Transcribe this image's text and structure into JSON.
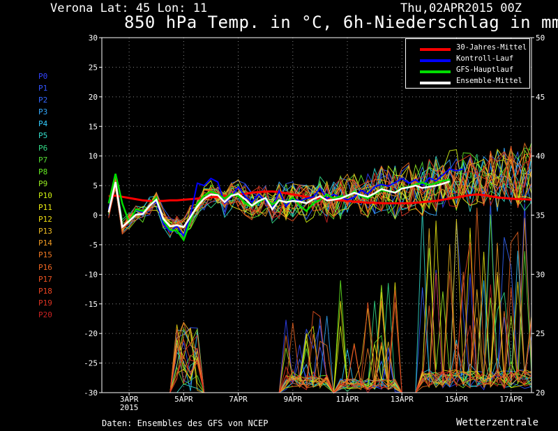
{
  "header": {
    "location": "Verona   Lat: 45 Lon: 11",
    "date": "Thu,02APR2015 00Z",
    "title": "850 hPa Temp. in °C, 6h-Niederschlag in mm"
  },
  "footer": {
    "source": "Daten: Ensembles des GFS von NCEP",
    "brand": "Wetterzentrale"
  },
  "members": [
    {
      "label": "P0",
      "color": "#3344ff"
    },
    {
      "label": "P1",
      "color": "#3355ff"
    },
    {
      "label": "P2",
      "color": "#3366ff"
    },
    {
      "label": "P3",
      "color": "#33aaff"
    },
    {
      "label": "P4",
      "color": "#33ccff"
    },
    {
      "label": "P5",
      "color": "#33ddcc"
    },
    {
      "label": "P6",
      "color": "#33dd88"
    },
    {
      "label": "P7",
      "color": "#55dd33"
    },
    {
      "label": "P8",
      "color": "#66ee22"
    },
    {
      "label": "P9",
      "color": "#99ee22"
    },
    {
      "label": "P10",
      "color": "#ccee11"
    },
    {
      "label": "P11",
      "color": "#eeee11"
    },
    {
      "label": "P12",
      "color": "#eedd11"
    },
    {
      "label": "P13",
      "color": "#eebb22"
    },
    {
      "label": "P14",
      "color": "#ee9922"
    },
    {
      "label": "P15",
      "color": "#ee7722"
    },
    {
      "label": "P16",
      "color": "#ee6622"
    },
    {
      "label": "P17",
      "color": "#ee5522"
    },
    {
      "label": "P18",
      "color": "#ee4422"
    },
    {
      "label": "P19",
      "color": "#dd3322"
    },
    {
      "label": "P20",
      "color": "#cc2222"
    }
  ],
  "chart_data": {
    "type": "line",
    "title": "850 hPa Temp. in °C, 6h-Niederschlag in mm",
    "x_ticks": [
      {
        "day": 3,
        "label": "3APR",
        "sublabel": "2015"
      },
      {
        "day": 5,
        "label": "5APR"
      },
      {
        "day": 7,
        "label": "7APR"
      },
      {
        "day": 9,
        "label": "9APR"
      },
      {
        "day": 11,
        "label": "11APR"
      },
      {
        "day": 13,
        "label": "13APR"
      },
      {
        "day": 15,
        "label": "15APR"
      },
      {
        "day": 17,
        "label": "17APR"
      }
    ],
    "x_range": [
      2.0,
      17.75
    ],
    "y_left": {
      "range": [
        -30,
        30
      ],
      "ticks": [
        -30,
        -25,
        -20,
        -15,
        -10,
        -5,
        0,
        5,
        10,
        15,
        20,
        25,
        30
      ],
      "unit": "°C"
    },
    "y_right": {
      "range": [
        20,
        50
      ],
      "ticks": [
        20,
        25,
        30,
        35,
        40,
        45,
        50
      ],
      "unit": "mm"
    },
    "grid": true,
    "legend": {
      "position": "top-right",
      "entries": [
        {
          "name": "30-Jahres-Mittel",
          "color": "#ff0000"
        },
        {
          "name": "Kontroll-Lauf",
          "color": "#0000ff"
        },
        {
          "name": "GFS-Hauptlauf",
          "color": "#00dd00"
        },
        {
          "name": "Ensemble-Mittel",
          "color": "#ffffff"
        }
      ]
    },
    "x_days": [
      2.25,
      2.5,
      2.75,
      3.0,
      3.25,
      3.5,
      3.75,
      4.0,
      4.25,
      4.5,
      4.75,
      5.0,
      5.25,
      5.5,
      5.75,
      6.0,
      6.25,
      6.5,
      6.75,
      7.0,
      7.25,
      7.5,
      7.75,
      8.0,
      8.25,
      8.5,
      8.75,
      9.0,
      9.25,
      9.5,
      9.75,
      10.0,
      10.25,
      10.5,
      10.75,
      11.0,
      11.25,
      11.5,
      11.75,
      12.0,
      12.25,
      12.5,
      12.75,
      13.0,
      13.25,
      13.5,
      13.75,
      14.0,
      14.25,
      14.5,
      14.75,
      15.0,
      15.25,
      15.5,
      15.75,
      16.0,
      16.25,
      16.5,
      16.75,
      17.0,
      17.25,
      17.5,
      17.75
    ],
    "climate_mean": [
      3.2,
      3.3,
      3.1,
      2.9,
      2.7,
      2.5,
      2.4,
      2.4,
      2.4,
      2.5,
      2.5,
      2.6,
      2.7,
      2.8,
      2.9,
      3.0,
      3.1,
      3.2,
      3.3,
      3.5,
      3.6,
      3.8,
      3.9,
      4.0,
      4.0,
      3.9,
      3.7,
      3.5,
      3.3,
      3.1,
      2.9,
      2.8,
      2.7,
      2.6,
      2.5,
      2.4,
      2.3,
      2.2,
      2.1,
      2.1,
      2.0,
      2.0,
      2.0,
      2.0,
      2.0,
      2.1,
      2.2,
      2.3,
      2.4,
      2.6,
      2.8,
      3.0,
      3.2,
      3.4,
      3.5,
      3.4,
      3.2,
      3.0,
      2.9,
      2.8,
      2.7,
      2.7,
      2.6
    ],
    "control_run": [
      1.0,
      5.5,
      -2.0,
      -1.0,
      0.8,
      0.5,
      1.7,
      2.3,
      -1.5,
      -2.8,
      -1.8,
      -3.5,
      0.0,
      5.4,
      5.0,
      6.2,
      5.6,
      2.0,
      3.1,
      4.8,
      3.2,
      2.2,
      3.5,
      2.5,
      1.2,
      4.1,
      1.5,
      2.8,
      2.4,
      2.8,
      3.1,
      4.5,
      2.8,
      3.5,
      3.0,
      2.6,
      3.0,
      4.2,
      3.6,
      4.8,
      5.2,
      4.9,
      5.5,
      6.2,
      5.4,
      6.0,
      5.1,
      6.3,
      5.8,
      6.8,
      7.8,
      7.5,
      7.8
    ],
    "gfs_main": [
      2.0,
      7.0,
      2.0,
      -1.2,
      1.0,
      0.7,
      1.5,
      3.0,
      -0.8,
      -2.5,
      -2.6,
      -4.2,
      -1.0,
      2.0,
      3.3,
      4.0,
      3.5,
      2.8,
      3.6,
      3.2,
      2.1,
      1.5,
      2.2,
      2.8,
      1.8,
      2.6,
      2.1,
      3.0,
      1.6,
      0.7,
      2.0,
      2.6,
      3.5,
      2.8,
      3.2,
      3.1,
      4.0,
      3.2,
      2.8,
      3.6,
      4.2,
      4.0,
      3.9,
      4.6,
      4.8,
      5.2,
      5.5,
      5.1,
      5.4,
      5.8,
      6.0
    ],
    "ensemble_mean": [
      0.5,
      5.6,
      -2.0,
      -1.0,
      0.1,
      0.2,
      1.6,
      2.6,
      -0.6,
      -1.9,
      -1.7,
      -2.0,
      -0.3,
      1.5,
      2.8,
      3.5,
      3.4,
      2.2,
      3.3,
      3.6,
      2.7,
      1.6,
      2.4,
      2.9,
      1.0,
      2.5,
      2.2,
      2.4,
      2.3,
      2.0,
      2.7,
      3.2,
      2.5,
      2.6,
      2.8,
      3.3,
      3.8,
      3.4,
      3.1,
      3.7,
      4.4,
      4.1,
      3.8,
      4.5,
      4.7,
      5.0,
      4.6,
      4.8,
      5.0,
      5.3,
      5.7
    ]
  }
}
